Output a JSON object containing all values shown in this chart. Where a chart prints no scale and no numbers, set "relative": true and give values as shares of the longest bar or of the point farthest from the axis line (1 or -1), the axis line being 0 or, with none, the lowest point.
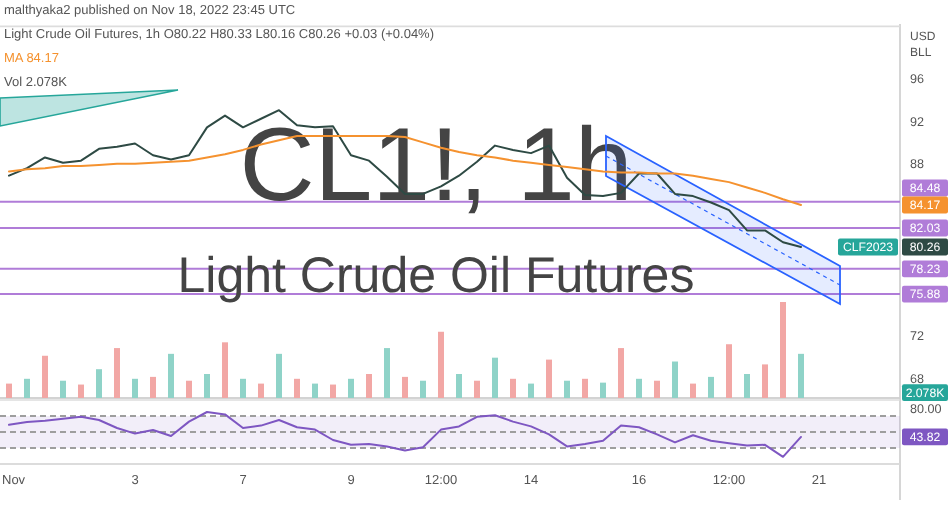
{
  "chart_data": [
    {
      "type": "line",
      "title": "CL1!, 1h",
      "subtitle": "Light Crude Oil Futures",
      "annotations": [
        "malthyaka2 published on Nov 18, 2022 23:45 UTC",
        "Light Crude Oil Futures, 1h O80.22 H80.33 L80.16 C80.26 +0.03 (+0.04%)",
        "CLF2023"
      ],
      "ylabel": "USD BLL",
      "ylim": [
        66.2,
        100.8
      ],
      "yticks": [
        68,
        72,
        80.26,
        84.17,
        88,
        92,
        96
      ],
      "tick_labels": "y",
      "legend": "top left",
      "series": [
        {
          "color": "#2e4a44",
          "values": [
            86.9,
            87.6,
            88.6,
            88.1,
            88.3,
            89.4,
            89.6,
            89.9,
            88.8,
            88.4,
            88.8,
            91.4,
            92.5,
            91.4,
            92.2,
            93.0,
            91.6,
            91.4,
            91.5,
            88.8,
            88.3,
            86.8,
            85.2,
            85.2,
            85.9,
            86.9,
            88.2,
            89.7,
            89.3,
            89.0,
            89.7,
            86.7,
            85.1,
            85.0,
            85.3,
            87.1,
            87.1,
            85.2,
            85.0,
            84.4,
            83.7,
            81.8,
            81.8,
            80.7,
            80.26,
            null,
            null,
            null,
            null,
            null
          ]
        },
        {
          "name": "MA 84.17",
          "color": "#f5922f",
          "values": [
            87.3,
            87.5,
            87.6,
            87.8,
            87.8,
            87.9,
            88.0,
            88.0,
            88.1,
            88.2,
            88.3,
            88.6,
            88.9,
            89.3,
            89.8,
            90.2,
            90.6,
            90.6,
            90.6,
            90.6,
            90.6,
            90.6,
            90.5,
            90.0,
            89.5,
            89.1,
            88.8,
            88.6,
            88.3,
            88.1,
            87.9,
            87.7,
            87.5,
            87.3,
            87.2,
            87.2,
            87.1,
            87.1,
            86.9,
            86.6,
            86.3,
            85.8,
            85.3,
            84.7,
            84.17,
            null,
            null,
            null,
            null,
            null
          ]
        }
      ],
      "ref_lines": [
        {
          "axis": "y",
          "value": 84.48,
          "label": "84.48",
          "color": "#b07cd8"
        },
        {
          "axis": "y",
          "value": 82.03,
          "label": "82.03",
          "color": "#b07cd8"
        },
        {
          "axis": "y",
          "value": 78.23,
          "label": "78.23",
          "color": "#b07cd8"
        },
        {
          "axis": "y",
          "value": 75.88,
          "label": "75.88",
          "color": "#b07cd8"
        }
      ]
    },
    {
      "type": "bar",
      "relative": true,
      "tick_labels": false,
      "annotations": [
        "Vol 2.078K",
        "2.078K"
      ],
      "values": [
        0.15,
        0.2,
        0.44,
        0.18,
        0.14,
        0.3,
        0.52,
        0.2,
        0.22,
        0.46,
        0.18,
        0.25,
        0.58,
        0.2,
        0.15,
        0.46,
        0.2,
        0.15,
        0.14,
        0.2,
        0.25,
        0.52,
        0.22,
        0.18,
        0.69,
        0.25,
        0.18,
        0.42,
        0.2,
        0.15,
        0.4,
        0.18,
        0.2,
        0.16,
        0.52,
        0.2,
        0.18,
        0.38,
        0.15,
        0.22,
        0.56,
        0.25,
        0.35,
        1.0,
        0.46
      ],
      "colors": [
        "#f2a7a5",
        "#8fd3c8",
        "#f2a7a5",
        "#8fd3c8",
        "#f2a7a5",
        "#8fd3c8",
        "#f2a7a5",
        "#8fd3c8",
        "#f2a7a5",
        "#8fd3c8",
        "#f2a7a5",
        "#8fd3c8",
        "#f2a7a5",
        "#8fd3c8",
        "#f2a7a5",
        "#8fd3c8",
        "#f2a7a5",
        "#8fd3c8",
        "#f2a7a5",
        "#8fd3c8",
        "#f2a7a5",
        "#8fd3c8",
        "#f2a7a5",
        "#8fd3c8",
        "#f2a7a5",
        "#8fd3c8",
        "#f2a7a5",
        "#8fd3c8",
        "#f2a7a5",
        "#8fd3c8",
        "#f2a7a5",
        "#8fd3c8",
        "#f2a7a5",
        "#8fd3c8",
        "#f2a7a5",
        "#8fd3c8",
        "#f2a7a5",
        "#8fd3c8",
        "#f2a7a5",
        "#8fd3c8",
        "#f2a7a5",
        "#8fd3c8",
        "#f2a7a5",
        "#f2a7a5",
        "#8fd3c8"
      ]
    },
    {
      "type": "line",
      "tick_labels": "xy",
      "ylim": [
        10,
        90
      ],
      "yticks": [
        {
          "value": 43.82,
          "label": "43.82"
        },
        {
          "value": 80,
          "label": "80.00"
        }
      ],
      "categories": [
        "Nov",
        null,
        null,
        null,
        null,
        null,
        null,
        "3",
        null,
        null,
        null,
        null,
        null,
        "7",
        null,
        null,
        null,
        null,
        null,
        "9",
        null,
        null,
        null,
        null,
        "12:00",
        null,
        null,
        null,
        null,
        "14",
        null,
        null,
        null,
        null,
        null,
        "16",
        null,
        null,
        null,
        null,
        "12:00",
        null,
        null,
        null,
        null,
        "21",
        null,
        null,
        null,
        null
      ],
      "bands": [
        {
          "axis": "y",
          "from": 30,
          "to": 70,
          "color": "#7e57c2"
        }
      ],
      "ref_lines": [
        {
          "axis": "y",
          "value": 70,
          "label": null,
          "color": "#9e9e9e",
          "line_style": "dashed"
        },
        {
          "axis": "y",
          "value": 50,
          "label": null,
          "color": "#9e9e9e",
          "line_style": "dashed"
        },
        {
          "axis": "y",
          "value": 30,
          "label": null,
          "color": "#9e9e9e",
          "line_style": "dashed"
        }
      ],
      "series": [
        {
          "color": "#7e57c2",
          "values": [
            59,
            62.5,
            64,
            66.5,
            69,
            65,
            55,
            48,
            52.5,
            45,
            63,
            75,
            72,
            55,
            58,
            65,
            56,
            53,
            40,
            34,
            35,
            32,
            27,
            31,
            53,
            57,
            69,
            71,
            63,
            57,
            47,
            32,
            35,
            39,
            58,
            56,
            47,
            37,
            46,
            39,
            36,
            33,
            34,
            19,
            43.82,
            null,
            null,
            null,
            null,
            null
          ]
        }
      ]
    }
  ]
}
